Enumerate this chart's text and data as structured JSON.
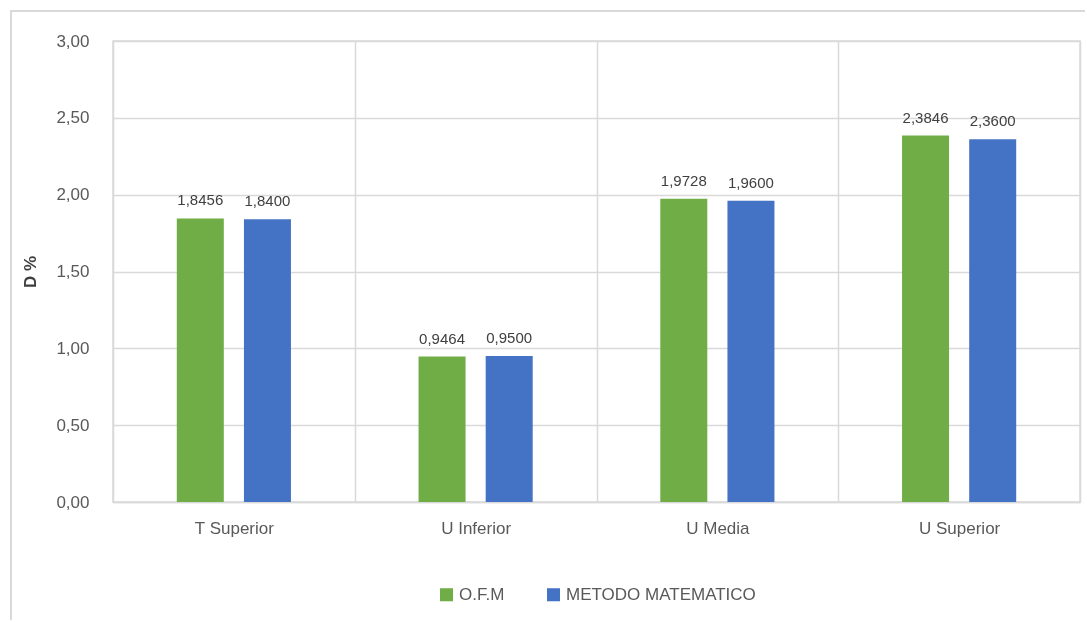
{
  "chart_data": {
    "type": "bar",
    "ylabel": "D %",
    "categories": [
      "T Superior",
      "U Inferior",
      "U Media",
      "U Superior"
    ],
    "series": [
      {
        "name": "O.F.M",
        "color": "#70ad47",
        "values": [
          1.8456,
          0.9464,
          1.9728,
          2.3846
        ],
        "value_labels": [
          "1,8456",
          "0,9464",
          "1,9728",
          "2,3846"
        ]
      },
      {
        "name": "METODO MATEMATICO",
        "color": "#4472c4",
        "values": [
          1.84,
          0.95,
          1.96,
          2.36
        ],
        "value_labels": [
          "1,8400",
          "0,9500",
          "1,9600",
          "2,3600"
        ]
      }
    ],
    "ylim": [
      0,
      3
    ],
    "yticks": [
      {
        "value": 0,
        "label": "0,00"
      },
      {
        "value": 0.5,
        "label": "0,50"
      },
      {
        "value": 1,
        "label": "1,00"
      },
      {
        "value": 1.5,
        "label": "1,50"
      },
      {
        "value": 2,
        "label": "2,00"
      },
      {
        "value": 2.5,
        "label": "2,50"
      },
      {
        "value": 3,
        "label": "3,00"
      }
    ],
    "grid": true,
    "legend": "bottom"
  }
}
